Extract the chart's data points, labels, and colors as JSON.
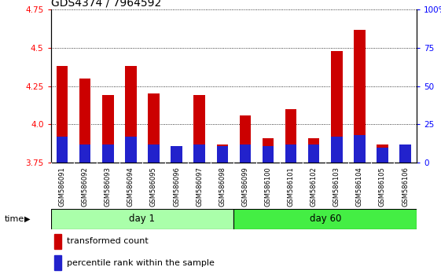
{
  "title": "GDS4374 / 7964592",
  "samples": [
    "GSM586091",
    "GSM586092",
    "GSM586093",
    "GSM586094",
    "GSM586095",
    "GSM586096",
    "GSM586097",
    "GSM586098",
    "GSM586099",
    "GSM586100",
    "GSM586101",
    "GSM586102",
    "GSM586103",
    "GSM586104",
    "GSM586105",
    "GSM586106"
  ],
  "transformed_count": [
    4.38,
    4.3,
    4.19,
    4.38,
    4.2,
    3.75,
    4.19,
    3.87,
    4.06,
    3.91,
    4.1,
    3.91,
    4.48,
    4.62,
    3.87,
    3.87
  ],
  "percentile_rank": [
    3.92,
    3.87,
    3.87,
    3.92,
    3.87,
    3.86,
    3.87,
    3.86,
    3.87,
    3.86,
    3.87,
    3.87,
    3.92,
    3.93,
    3.85,
    3.87
  ],
  "bar_bottom": 3.75,
  "red_color": "#cc0000",
  "blue_color": "#2222cc",
  "day1_samples": 8,
  "day60_samples": 8,
  "day1_label": "day 1",
  "day60_label": "day 60",
  "time_label": "time",
  "legend1": "transformed count",
  "legend2": "percentile rank within the sample",
  "ylim_left": [
    3.75,
    4.75
  ],
  "ylim_right": [
    0,
    100
  ],
  "yticks_left": [
    3.75,
    4.0,
    4.25,
    4.5,
    4.75
  ],
  "yticks_right": [
    0,
    25,
    50,
    75,
    100
  ],
  "ytick_labels_right": [
    "0",
    "25",
    "50",
    "75",
    "100%"
  ],
  "plot_bg_color": "#ffffff",
  "label_bg_color": "#c8c8c8",
  "day1_color": "#aaffaa",
  "day60_color": "#44ee44",
  "bar_width": 0.5,
  "title_fontsize": 10,
  "tick_fontsize": 7.5,
  "label_fontsize": 8
}
